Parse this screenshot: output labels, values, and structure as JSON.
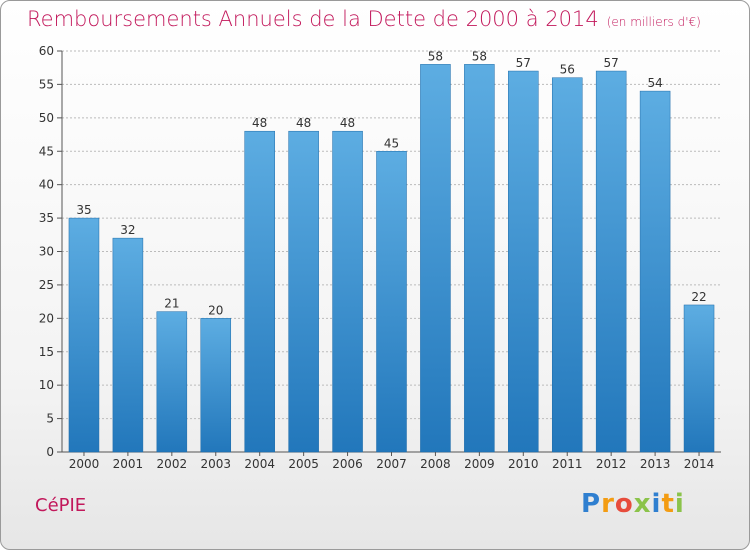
{
  "header": {
    "title": "Remboursements Annuels de la Dette de 2000 à 2014",
    "unit": "(en milliers d'€)"
  },
  "footer": {
    "city": "CéPIE",
    "logo_letters": [
      "P",
      "r",
      "o",
      "x",
      "i",
      "t",
      "i"
    ]
  },
  "colors": {
    "title": "#c2185b",
    "bar_top": "#5dade2",
    "bar_bottom": "#2277bb",
    "grid": "#bbbbbb"
  },
  "chart_data": {
    "type": "bar",
    "title": "Remboursements Annuels de la Dette de 2000 à 2014",
    "categories": [
      "2000",
      "2001",
      "2002",
      "2003",
      "2004",
      "2005",
      "2006",
      "2007",
      "2008",
      "2009",
      "2010",
      "2011",
      "2012",
      "2013",
      "2014"
    ],
    "values": [
      35,
      32,
      21,
      20,
      48,
      48,
      48,
      45,
      58,
      58,
      57,
      56,
      57,
      54,
      22
    ],
    "ylim": [
      0,
      60
    ],
    "yticks": [
      0,
      5,
      10,
      15,
      20,
      25,
      30,
      35,
      40,
      45,
      50,
      55,
      60
    ],
    "grid": true,
    "xlabel": "",
    "ylabel": ""
  }
}
